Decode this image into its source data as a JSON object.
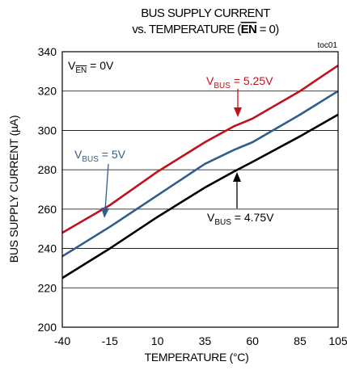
{
  "chart_data": {
    "type": "line",
    "title_line1": "BUS SUPPLY CURRENT",
    "title_line2_prefix": "vs. TEMPERATURE (",
    "title_line2_en": "EN",
    "title_line2_suffix": " = 0)",
    "figure_code": "toc01",
    "xlabel": "TEMPERATURE (°C)",
    "ylabel": "BUS SUPPLY CURRENT (µA)",
    "xlim": [
      -40,
      105
    ],
    "ylim": [
      200,
      340
    ],
    "xticks": [
      -40,
      -15,
      10,
      35,
      60,
      85,
      105
    ],
    "yticks": [
      200,
      220,
      240,
      260,
      280,
      300,
      320,
      340
    ],
    "grid": true,
    "condition": {
      "prefix": "V",
      "sub": "EN",
      "suffix": " = 0V"
    },
    "series": [
      {
        "label_sub": "BUS",
        "label_suffix": " = 5.25V",
        "color": "#c0121d",
        "x": [
          -40,
          -15,
          10,
          35,
          50,
          60,
          85,
          105
        ],
        "y": [
          248,
          262,
          279,
          294,
          302,
          306,
          320,
          333
        ]
      },
      {
        "label_sub": "BUS",
        "label_suffix": " = 5V",
        "color": "#2f5d8c",
        "x": [
          -40,
          -15,
          10,
          35,
          50,
          60,
          85,
          105
        ],
        "y": [
          236,
          251,
          267,
          283,
          290,
          294,
          308,
          320
        ]
      },
      {
        "label_sub": "BUS",
        "label_suffix": " = 4.75V",
        "color": "#000000",
        "x": [
          -40,
          -15,
          10,
          35,
          50,
          60,
          85,
          105
        ],
        "y": [
          225,
          240,
          256,
          271,
          279,
          284,
          297,
          308
        ]
      }
    ]
  }
}
